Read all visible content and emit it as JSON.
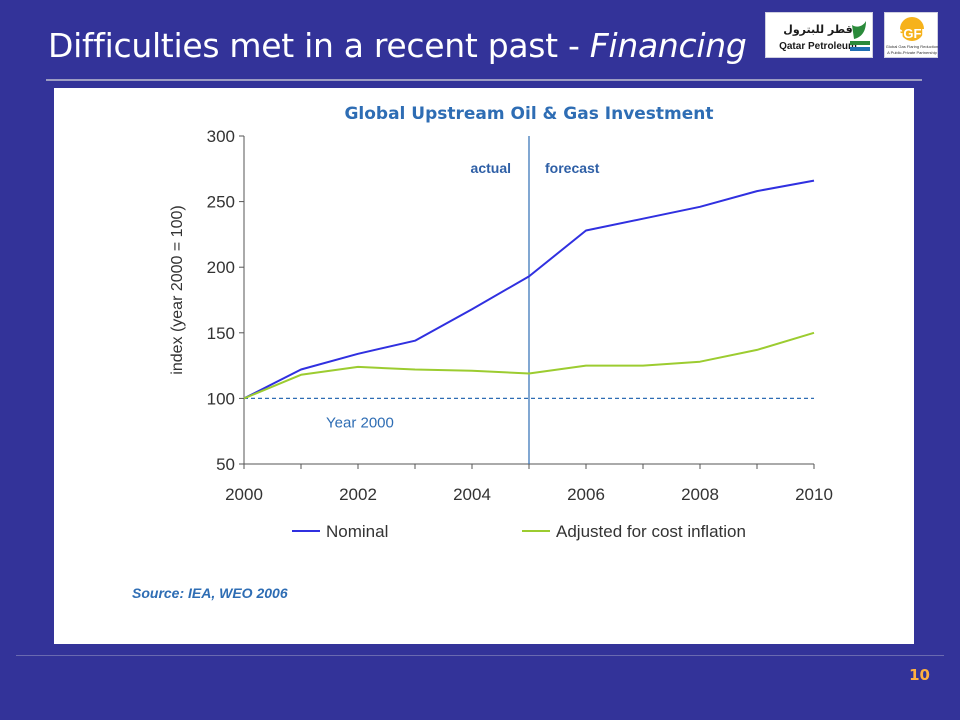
{
  "slide": {
    "title_main": "Difficulties met in a recent past - ",
    "title_italic": "Financing",
    "page_number": "10"
  },
  "logos": {
    "qatar_arabic": "قطر للبترول",
    "qatar_english": "Qatar Petroleum",
    "ggfr_acronym": "GGFR",
    "ggfr_line1": "Global Gas Flaring Reduction",
    "ggfr_line2": "A Public-Private Partnership"
  },
  "chart_data": {
    "type": "line",
    "title": "Global Upstream Oil & Gas Investment",
    "ylabel": "index (year 2000 = 100)",
    "xlabel": "",
    "xlim": [
      2000,
      2010
    ],
    "ylim": [
      50,
      300
    ],
    "x_ticks": [
      2000,
      2002,
      2004,
      2006,
      2008,
      2010
    ],
    "y_ticks": [
      50,
      100,
      150,
      200,
      250,
      300
    ],
    "x": [
      2000,
      2001,
      2002,
      2003,
      2004,
      2005,
      2006,
      2007,
      2008,
      2009,
      2010
    ],
    "series": [
      {
        "name": "Nominal",
        "color": "#3030e0",
        "values": [
          100,
          122,
          134,
          144,
          168,
          193,
          228,
          237,
          246,
          258,
          266
        ]
      },
      {
        "name": "Adjusted for cost inflation",
        "color": "#9ccc30",
        "values": [
          100,
          118,
          124,
          122,
          121,
          119,
          125,
          125,
          128,
          137,
          150
        ]
      }
    ],
    "reference_line": {
      "value": 100,
      "label": "Year 2000"
    },
    "divider": {
      "x": 2005,
      "left_label": "actual",
      "right_label": "forecast"
    },
    "legend_position": "bottom",
    "source": "Source: IEA, WEO 2006"
  }
}
